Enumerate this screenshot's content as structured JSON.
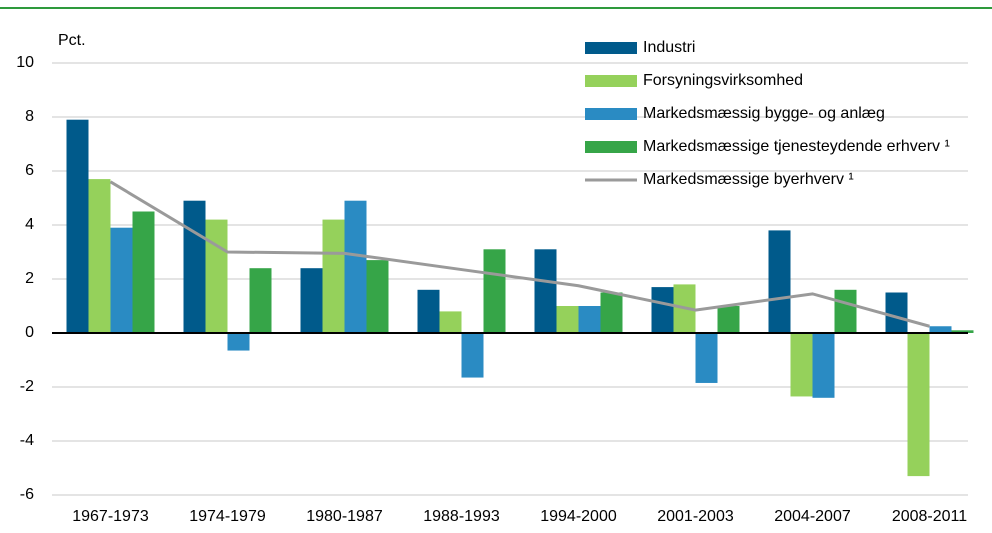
{
  "chart_data": {
    "type": "bar",
    "y_label": "Pct.",
    "categories": [
      "1967-1973",
      "1974-1979",
      "1980-1987",
      "1988-1993",
      "1994-2000",
      "2001-2003",
      "2004-2007",
      "2008-2011"
    ],
    "series": [
      {
        "name": "Industri",
        "color": "#005a8b",
        "values": [
          7.9,
          4.9,
          2.4,
          1.6,
          3.1,
          1.7,
          3.8,
          1.5
        ]
      },
      {
        "name": "Forsyningsvirksomhed",
        "color": "#95d15b",
        "values": [
          5.7,
          4.2,
          4.2,
          0.8,
          1.0,
          1.8,
          -2.35,
          -5.3
        ]
      },
      {
        "name": "Markedsmæssig bygge- og anlæg",
        "color": "#2a8bc3",
        "values": [
          3.9,
          -0.65,
          4.9,
          -1.65,
          1.0,
          -1.85,
          -2.4,
          0.25
        ]
      },
      {
        "name": "Markedsmæssige tjenesteydende erhverv ¹",
        "color": "#36a548",
        "values": [
          4.5,
          2.4,
          2.7,
          3.1,
          1.5,
          1.0,
          1.6,
          0.1
        ]
      },
      {
        "name": "Markedsmæssige byerhverv ¹",
        "color": "#9a9a9a",
        "type": "line",
        "values": [
          5.6,
          3.0,
          2.95,
          2.35,
          1.75,
          0.85,
          1.45,
          0.25
        ]
      }
    ],
    "ylim": [
      -6,
      10
    ],
    "yticks": [
      -6,
      -4,
      -2,
      0,
      2,
      4,
      6,
      8,
      10
    ],
    "grid": true
  }
}
